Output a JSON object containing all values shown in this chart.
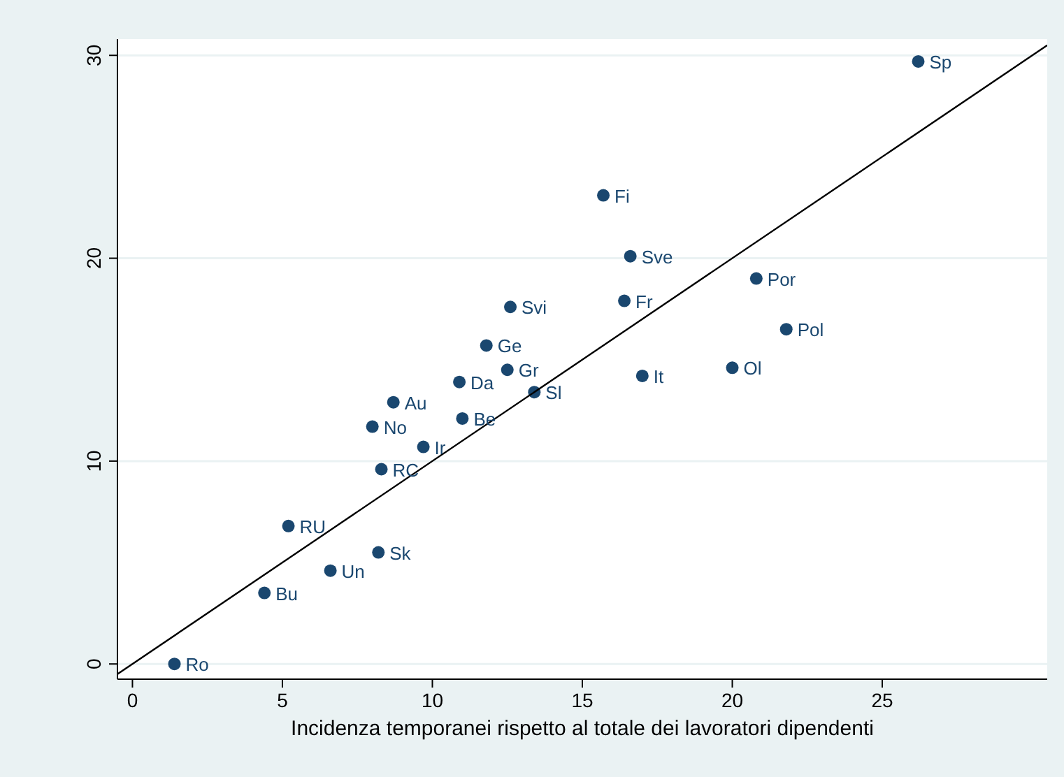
{
  "chart_data": {
    "type": "scatter",
    "xlabel": "Incidenza temporanei rispetto al totale dei lavoratori dipendenti",
    "xlim": [
      -0.5,
      30.5
    ],
    "ylim": [
      -0.75,
      30.8
    ],
    "xticks": [
      0,
      5,
      10,
      15,
      20,
      25
    ],
    "yticks": [
      0,
      10,
      20,
      30
    ],
    "grid": "y",
    "marker": "circle",
    "series": [
      {
        "color": "#1a476f",
        "x": [
          1.4,
          4.4,
          6.6,
          5.2,
          8.2,
          8.3,
          9.7,
          8.0,
          8.7,
          11.0,
          10.9,
          11.8,
          12.5,
          13.4,
          12.6,
          15.7,
          16.6,
          16.4,
          17.0,
          20.0,
          20.8,
          21.8,
          26.2
        ],
        "values": [
          0,
          3.5,
          4.6,
          6.8,
          5.5,
          9.6,
          10.7,
          11.7,
          12.9,
          12.1,
          13.9,
          15.7,
          14.5,
          13.4,
          17.6,
          23.1,
          20.1,
          17.9,
          14.2,
          14.6,
          19.0,
          16.5,
          29.7
        ]
      },
      {
        "type": "line",
        "color": "#000000",
        "marker": "none",
        "x": [
          -0.5,
          30.5
        ],
        "values": [
          -0.5,
          30.5
        ]
      }
    ],
    "annotations": [
      {
        "text": "Ro",
        "x": 1.4,
        "y": 0
      },
      {
        "text": "Bu",
        "x": 4.4,
        "y": 3.5
      },
      {
        "text": "Un",
        "x": 6.6,
        "y": 4.6
      },
      {
        "text": "RU",
        "x": 5.2,
        "y": 6.8
      },
      {
        "text": "Sk",
        "x": 8.2,
        "y": 5.5
      },
      {
        "text": "RC",
        "x": 8.3,
        "y": 9.6
      },
      {
        "text": "Ir",
        "x": 9.7,
        "y": 10.7
      },
      {
        "text": "No",
        "x": 8.0,
        "y": 11.7
      },
      {
        "text": "Au",
        "x": 8.7,
        "y": 12.9
      },
      {
        "text": "Be",
        "x": 11.0,
        "y": 12.1
      },
      {
        "text": "Da",
        "x": 10.9,
        "y": 13.9
      },
      {
        "text": "Ge",
        "x": 11.8,
        "y": 15.7
      },
      {
        "text": "Gr",
        "x": 12.5,
        "y": 14.5
      },
      {
        "text": "Sl",
        "x": 13.4,
        "y": 13.4
      },
      {
        "text": "Svi",
        "x": 12.6,
        "y": 17.6
      },
      {
        "text": "Fi",
        "x": 15.7,
        "y": 23.1
      },
      {
        "text": "Sve",
        "x": 16.6,
        "y": 20.1
      },
      {
        "text": "Fr",
        "x": 16.4,
        "y": 17.9
      },
      {
        "text": "It",
        "x": 17.0,
        "y": 14.2
      },
      {
        "text": "Ol",
        "x": 20.0,
        "y": 14.6
      },
      {
        "text": "Por",
        "x": 20.8,
        "y": 19.0
      },
      {
        "text": "Pol",
        "x": 21.8,
        "y": 16.5
      },
      {
        "text": "Sp",
        "x": 26.2,
        "y": 29.7
      }
    ]
  }
}
